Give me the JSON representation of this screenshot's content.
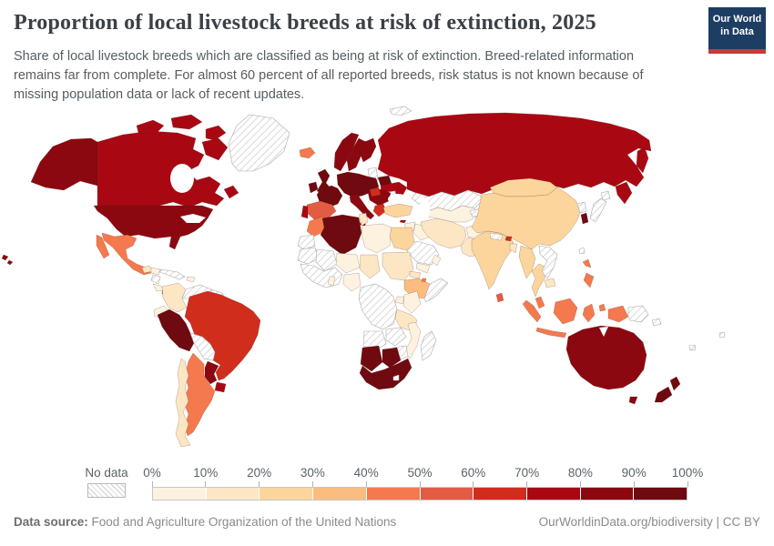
{
  "header": {
    "title": "Proportion of local livestock breeds at risk of extinction, 2025",
    "subtitle": "Share of local livestock breeds which are classified as being at risk of extinction. Breed-related information remains far from complete. For almost 60 percent of all reported breeds, risk status is not known because of missing population data or lack of recent updates.",
    "logo_line1": "Our World",
    "logo_line2": "in Data"
  },
  "legend": {
    "no_data_label": "No data",
    "ticks": [
      "0%",
      "10%",
      "20%",
      "30%",
      "40%",
      "50%",
      "60%",
      "70%",
      "80%",
      "90%",
      "100%"
    ]
  },
  "footer": {
    "source_label": "Data source:",
    "source_value": " Food and Agriculture Organization of the United Nations",
    "attribution": "OurWorldinData.org/biodiversity | CC BY"
  },
  "colors": {
    "palette": [
      "#fdf2e0",
      "#fde6c3",
      "#fcd59d",
      "#fbbc80",
      "#f5794e",
      "#e25c43",
      "#d02d1d",
      "#a90813",
      "#8b0810",
      "#6e0a10"
    ],
    "logo_bg": "#1d3d63",
    "logo_accent": "#c53b3b",
    "nd_stroke": "#ababab",
    "country_stroke": "rgba(70,25,15,0.38)"
  },
  "map": {
    "regions": {
      "alaska": 8,
      "hawaii1": 8,
      "hawaii2": 8,
      "canada": 7,
      "arctic1": 7,
      "arctic2": 7,
      "arctic3": 7,
      "baffin": 7,
      "newfoundland": 7,
      "greenland": "nd",
      "usa": 8,
      "baja": 4,
      "mexico": 4,
      "guatemala": 1,
      "honduras": 0,
      "nicaragua": "nd",
      "costarica": 0,
      "panama": 6,
      "cuba": "nd",
      "hispaniola": 0,
      "colombia": 1,
      "venezuela": "nd",
      "guyanas": "nd",
      "ecuador": 0,
      "peru": 9,
      "brazil": 6,
      "bolivia": "nd",
      "paraguay": 8,
      "uruguay": 7,
      "argentina": 4,
      "chile": 1,
      "iceland": 4,
      "uk": 9,
      "ireland": 9,
      "norway": 8,
      "sweden": 8,
      "finland": 8,
      "denmark": 9,
      "baltics": "nd",
      "belarus": 9,
      "ukraine": 7,
      "moldova": "nd",
      "centraleurope": 9,
      "france": 9,
      "spain": 5,
      "portugal": 7,
      "italy": 8,
      "sicily": 8,
      "balkans": 8,
      "hungaryserbia": 6,
      "greece": 6,
      "svalbard": "nd",
      "russia": 7,
      "kamchatka": 7,
      "rufareast": 7,
      "kazakhstan": "nd",
      "centralasia": 0,
      "kyrgyzstan": "nd",
      "turkey": 2,
      "cyprus": 7,
      "syria": 0,
      "israel": 6,
      "jordan": 0,
      "iraq": 0,
      "saudi": "nd",
      "yemen": 0,
      "oman": 0,
      "iran": 1,
      "afghanistan": 0,
      "pakistan": 1,
      "india": 2,
      "nepal": "nd",
      "bhutan": 6,
      "bangladesh": 1,
      "srilanka": 5,
      "mongolia": 2,
      "china": 2,
      "myanmar": 2,
      "thailand": 2,
      "laosvietnam": "nd",
      "cambodia": 1,
      "malaysia": 4,
      "sumatra": 4,
      "java": 4,
      "borneo": 4,
      "sulawesi": 4,
      "moluccas": 4,
      "philippines1": 4,
      "philippines2": 4,
      "taiwan": "nd",
      "wpapua": 4,
      "png": "nd",
      "japan": "nd",
      "hokkaido": "nd",
      "nkorea": "nd",
      "skorea": 9,
      "morocco": 4,
      "wsahara": "nd",
      "algeria": 9,
      "tunisia": 1,
      "libya": 0,
      "egypt": 2,
      "mauritania": "nd",
      "mali": "nd",
      "niger": 0,
      "chad": 1,
      "sudan": 1,
      "eritrea": 1,
      "ethiopia": 3,
      "djibouti": 4,
      "somalia": "nd",
      "westafrica": "nd",
      "ghana": 0,
      "nigeria": 0,
      "centralafrica": "nd",
      "uganda": 0,
      "kenya": 0,
      "tanzania": 1,
      "angola": "nd",
      "zambia": "nd",
      "mozambique": 0,
      "zimbabwe": "nd",
      "madagascar": "nd",
      "namibia": 9,
      "botswana": 9,
      "southafrica": 9,
      "australia": 8,
      "tasmania": 8,
      "nznorth": 9,
      "nzsouth": 9,
      "solomon": "nd",
      "newcaledonia": "nd",
      "fiji": "nd"
    }
  },
  "chart_data": {
    "type": "choropleth",
    "title": "Proportion of local livestock breeds at risk of extinction, 2025",
    "unit": "%",
    "legend_range": [
      0,
      100
    ],
    "bins": [
      {
        "range": "0-10%",
        "color": "#fdf2e0"
      },
      {
        "range": "10-20%",
        "color": "#fde6c3"
      },
      {
        "range": "20-30%",
        "color": "#fcd59d"
      },
      {
        "range": "30-40%",
        "color": "#fbbc80"
      },
      {
        "range": "40-50%",
        "color": "#f5794e"
      },
      {
        "range": "50-60%",
        "color": "#e25c43"
      },
      {
        "range": "60-70%",
        "color": "#d02d1d"
      },
      {
        "range": "70-80%",
        "color": "#a90813"
      },
      {
        "range": "80-90%",
        "color": "#8b0810"
      },
      {
        "range": "90-100%",
        "color": "#6e0a10"
      }
    ],
    "no_data": {
      "label": "No data",
      "style": "hatched"
    },
    "countries": {
      "United States": "80-90%",
      "Canada": "70-80%",
      "Greenland": "No data",
      "Mexico": "40-50%",
      "Guatemala": "10-20%",
      "Honduras": "0-10%",
      "Nicaragua": "No data",
      "Costa Rica": "0-10%",
      "Panama": "60-70%",
      "Cuba": "No data",
      "Colombia": "10-20%",
      "Venezuela": "No data",
      "Ecuador": "0-10%",
      "Peru": "90-100%",
      "Brazil": "60-70%",
      "Bolivia": "No data",
      "Paraguay": "80-90%",
      "Uruguay": "70-80%",
      "Argentina": "40-50%",
      "Chile": "10-20%",
      "Iceland": "40-50%",
      "United Kingdom": "90-100%",
      "Ireland": "90-100%",
      "Norway": "80-90%",
      "Sweden": "80-90%",
      "Finland": "80-90%",
      "Denmark": "90-100%",
      "Germany": "90-100%",
      "France": "90-100%",
      "Spain": "50-60%",
      "Portugal": "70-80%",
      "Italy": "80-90%",
      "Hungary": "60-70%",
      "Serbia": "60-70%",
      "Greece": "60-70%",
      "Ukraine": "70-80%",
      "Belarus": "90-100%",
      "Russia": "70-80%",
      "Turkey": "20-30%",
      "Iran": "10-20%",
      "Iraq": "0-10%",
      "Saudi Arabia": "No data",
      "Kazakhstan": "No data",
      "Uzbekistan": "0-10%",
      "Afghanistan": "0-10%",
      "Pakistan": "10-20%",
      "India": "20-30%",
      "Sri Lanka": "50-60%",
      "Nepal": "No data",
      "Bhutan": "60-70%",
      "Bangladesh": "10-20%",
      "Mongolia": "20-30%",
      "China": "20-30%",
      "Myanmar": "20-30%",
      "Thailand": "20-30%",
      "Vietnam": "No data",
      "Cambodia": "10-20%",
      "Malaysia": "40-50%",
      "Indonesia": "40-50%",
      "Philippines": "40-50%",
      "Japan": "No data",
      "South Korea": "90-100%",
      "North Korea": "No data",
      "Morocco": "40-50%",
      "Algeria": "90-100%",
      "Tunisia": "10-20%",
      "Libya": "0-10%",
      "Egypt": "20-30%",
      "Sudan": "10-20%",
      "Ethiopia": "30-40%",
      "Djibouti": "40-50%",
      "Somalia": "No data",
      "Nigeria": "0-10%",
      "Kenya": "0-10%",
      "Tanzania": "10-20%",
      "Mozambique": "0-10%",
      "Madagascar": "No data",
      "Namibia": "90-100%",
      "Botswana": "90-100%",
      "South Africa": "90-100%",
      "Australia": "80-90%",
      "New Zealand": "90-100%",
      "Papua New Guinea": "No data"
    }
  }
}
